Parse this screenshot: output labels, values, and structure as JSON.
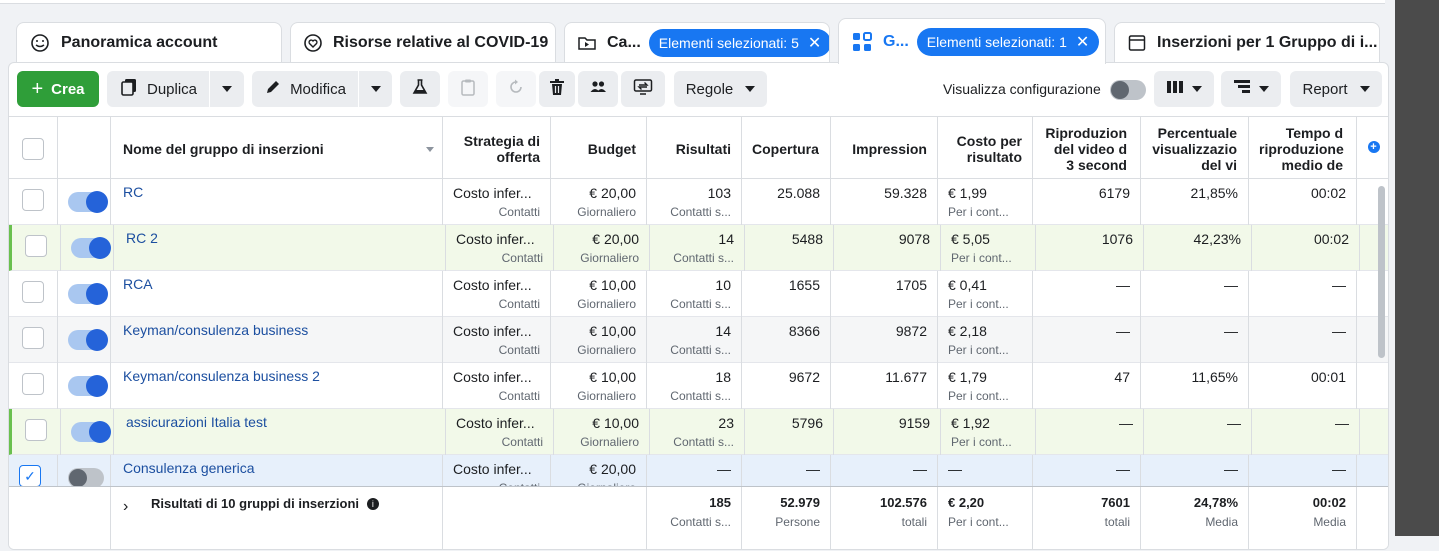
{
  "tabs": [
    {
      "label": "Panoramica account",
      "icon": "smiley-icon"
    },
    {
      "label": "Risorse relative al COVID-19",
      "icon": "heart-icon"
    },
    {
      "label": "Ca...",
      "icon": "folder-icon",
      "pill": "Elementi selezionati: 5"
    },
    {
      "label": "G...",
      "icon": "grid-icon",
      "pill": "Elementi selezionati: 1",
      "active": true
    },
    {
      "label": "Inserzioni per 1 Gruppo di i...",
      "icon": "ad-icon"
    }
  ],
  "toolbar": {
    "crea": "Crea",
    "duplica": "Duplica",
    "modifica": "Modifica",
    "regole": "Regole",
    "visualizza": "Visualizza configurazione",
    "report": "Report"
  },
  "columns": {
    "name": "Nome del gruppo di inserzioni",
    "strategia": [
      "Strategia di",
      "offerta"
    ],
    "budget": "Budget",
    "risultati": "Risultati",
    "copertura": "Copertura",
    "impression": "Impression",
    "costo": [
      "Costo per",
      "risultato"
    ],
    "riproduzioni": [
      "Riproduzion",
      "del video d",
      "3 second"
    ],
    "percentuale": [
      "Percentuale",
      "visualizzazio",
      "del vi"
    ],
    "tempo": [
      "Tempo d",
      "riproduzione",
      "medio de"
    ]
  },
  "rows": [
    {
      "name": "RC",
      "on": true,
      "strategia": "Costo infer...",
      "strategia_sub": "Contatti",
      "budget": "€ 20,00",
      "budget_sub": "Giornaliero",
      "risultati": "103",
      "risultati_sub": "Contatti s...",
      "copertura": "25.088",
      "impression": "59.328",
      "costo": "€ 1,99",
      "costo_sub": "Per i cont...",
      "riproduzioni": "6179",
      "percentuale": "21,85%",
      "tempo": "00:02"
    },
    {
      "name": "RC 2",
      "on": true,
      "strategia": "Costo infer...",
      "strategia_sub": "Contatti",
      "budget": "€ 20,00",
      "budget_sub": "Giornaliero",
      "risultati": "14",
      "risultati_sub": "Contatti s...",
      "copertura": "5488",
      "impression": "9078",
      "costo": "€ 5,05",
      "costo_sub": "Per i cont...",
      "riproduzioni": "1076",
      "percentuale": "42,23%",
      "tempo": "00:02"
    },
    {
      "name": "RCA",
      "on": true,
      "strategia": "Costo infer...",
      "strategia_sub": "Contatti",
      "budget": "€ 10,00",
      "budget_sub": "Giornaliero",
      "risultati": "10",
      "risultati_sub": "Contatti s...",
      "copertura": "1655",
      "impression": "1705",
      "costo": "€ 0,41",
      "costo_sub": "Per i cont...",
      "riproduzioni": "—",
      "percentuale": "—",
      "tempo": "—"
    },
    {
      "name": "Keyman/consulenza business",
      "on": true,
      "strategia": "Costo infer...",
      "strategia_sub": "Contatti",
      "budget": "€ 10,00",
      "budget_sub": "Giornaliero",
      "risultati": "14",
      "risultati_sub": "Contatti s...",
      "copertura": "8366",
      "impression": "9872",
      "costo": "€ 2,18",
      "costo_sub": "Per i cont...",
      "riproduzioni": "—",
      "percentuale": "—",
      "tempo": "—"
    },
    {
      "name": "Keyman/consulenza business 2",
      "on": true,
      "strategia": "Costo infer...",
      "strategia_sub": "Contatti",
      "budget": "€ 10,00",
      "budget_sub": "Giornaliero",
      "risultati": "18",
      "risultati_sub": "Contatti s...",
      "copertura": "9672",
      "impression": "11.677",
      "costo": "€ 1,79",
      "costo_sub": "Per i cont...",
      "riproduzioni": "47",
      "percentuale": "11,65%",
      "tempo": "00:01"
    },
    {
      "name": "assicurazioni Italia test",
      "on": true,
      "strategia": "Costo infer...",
      "strategia_sub": "Contatti",
      "budget": "€ 10,00",
      "budget_sub": "Giornaliero",
      "risultati": "23",
      "risultati_sub": "Contatti s...",
      "copertura": "5796",
      "impression": "9159",
      "costo": "€ 1,92",
      "costo_sub": "Per i cont...",
      "riproduzioni": "—",
      "percentuale": "—",
      "tempo": "—"
    },
    {
      "name": "Consulenza generica",
      "on": false,
      "checked": true,
      "strategia": "Costo infer...",
      "strategia_sub": "Contatti",
      "budget": "€ 20,00",
      "budget_sub": "Giornaliero",
      "risultati": "—",
      "risultati_sub": "",
      "copertura": "—",
      "impression": "—",
      "costo": "—",
      "costo_sub": "",
      "riproduzioni": "—",
      "percentuale": "—",
      "tempo": "—"
    }
  ],
  "totals": {
    "label": "Risultati di 10 gruppi di inserzioni",
    "risultati": "185",
    "risultati_sub": "Contatti s...",
    "copertura": "52.979",
    "copertura_sub": "Persone",
    "impression": "102.576",
    "impression_sub": "totali",
    "costo": "€ 2,20",
    "costo_sub": "Per i cont...",
    "riproduzioni": "7601",
    "riproduzioni_sub": "totali",
    "percentuale": "24,78%",
    "percentuale_sub": "Media",
    "tempo": "00:02",
    "tempo_sub": "Media"
  }
}
